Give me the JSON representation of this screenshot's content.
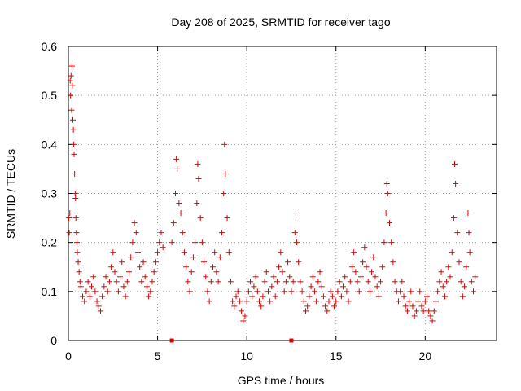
{
  "chart_data": {
    "type": "scatter",
    "title": "Day 208 of 2025, SRMTID for receiver tago",
    "xlabel": "GPS time / hours",
    "ylabel": "SRMTID / TECUs",
    "xlim": [
      0,
      24
    ],
    "ylim": [
      0,
      0.6
    ],
    "x_ticks": [
      0,
      5,
      10,
      15,
      20
    ],
    "x_tick_labels": [
      "0",
      "5",
      "10",
      "15",
      "20"
    ],
    "y_ticks": [
      0,
      0.1,
      0.2,
      0.3,
      0.4,
      0.5,
      0.6
    ],
    "y_tick_labels": [
      "0",
      "0.1",
      "0.2",
      "0.3",
      "0.4",
      "0.5",
      "0.6"
    ],
    "grid": true,
    "marker": "+",
    "color": "#e00000",
    "series": [
      {
        "name": "SRMTID",
        "points": [
          [
            0.02,
            0.25
          ],
          [
            0.05,
            0.22
          ],
          [
            0.08,
            0.26
          ],
          [
            0.1,
            0.53
          ],
          [
            0.12,
            0.5
          ],
          [
            0.15,
            0.54
          ],
          [
            0.18,
            0.47
          ],
          [
            0.2,
            0.56
          ],
          [
            0.22,
            0.52
          ],
          [
            0.25,
            0.45
          ],
          [
            0.28,
            0.43
          ],
          [
            0.3,
            0.4
          ],
          [
            0.32,
            0.38
          ],
          [
            0.35,
            0.34
          ],
          [
            0.38,
            0.3
          ],
          [
            0.4,
            0.29
          ],
          [
            0.42,
            0.25
          ],
          [
            0.45,
            0.22
          ],
          [
            0.48,
            0.2
          ],
          [
            0.5,
            0.18
          ],
          [
            0.55,
            0.16
          ],
          [
            0.6,
            0.14
          ],
          [
            0.65,
            0.12
          ],
          [
            0.7,
            0.11
          ],
          [
            0.8,
            0.09
          ],
          [
            0.9,
            0.08
          ],
          [
            1.0,
            0.1
          ],
          [
            1.1,
            0.12
          ],
          [
            1.2,
            0.09
          ],
          [
            1.3,
            0.11
          ],
          [
            1.4,
            0.13
          ],
          [
            1.5,
            0.1
          ],
          [
            1.6,
            0.08
          ],
          [
            1.7,
            0.07
          ],
          [
            1.8,
            0.06
          ],
          [
            1.9,
            0.09
          ],
          [
            2.0,
            0.11
          ],
          [
            2.1,
            0.13
          ],
          [
            2.2,
            0.1
          ],
          [
            2.3,
            0.12
          ],
          [
            2.4,
            0.15
          ],
          [
            2.5,
            0.18
          ],
          [
            2.6,
            0.14
          ],
          [
            2.7,
            0.12
          ],
          [
            2.8,
            0.1
          ],
          [
            2.9,
            0.13
          ],
          [
            3.0,
            0.16
          ],
          [
            3.1,
            0.11
          ],
          [
            3.2,
            0.09
          ],
          [
            3.3,
            0.12
          ],
          [
            3.4,
            0.14
          ],
          [
            3.5,
            0.17
          ],
          [
            3.6,
            0.2
          ],
          [
            3.7,
            0.24
          ],
          [
            3.8,
            0.22
          ],
          [
            3.9,
            0.18
          ],
          [
            4.0,
            0.15
          ],
          [
            4.1,
            0.12
          ],
          [
            4.2,
            0.16
          ],
          [
            4.3,
            0.13
          ],
          [
            4.4,
            0.11
          ],
          [
            4.5,
            0.09
          ],
          [
            4.6,
            0.1
          ],
          [
            4.7,
            0.12
          ],
          [
            4.8,
            0.14
          ],
          [
            4.9,
            0.16
          ],
          [
            5.0,
            0.18
          ],
          [
            5.1,
            0.2
          ],
          [
            5.2,
            0.22
          ],
          [
            5.3,
            0.19
          ],
          [
            5.8,
            0.2
          ],
          [
            5.9,
            0.24
          ],
          [
            6.0,
            0.3
          ],
          [
            6.05,
            0.37
          ],
          [
            6.1,
            0.35
          ],
          [
            6.2,
            0.28
          ],
          [
            6.3,
            0.26
          ],
          [
            6.4,
            0.22
          ],
          [
            6.5,
            0.18
          ],
          [
            6.6,
            0.15
          ],
          [
            6.7,
            0.12
          ],
          [
            6.8,
            0.1
          ],
          [
            6.9,
            0.14
          ],
          [
            7.0,
            0.17
          ],
          [
            7.1,
            0.2
          ],
          [
            7.2,
            0.28
          ],
          [
            7.25,
            0.36
          ],
          [
            7.3,
            0.33
          ],
          [
            7.4,
            0.25
          ],
          [
            7.5,
            0.2
          ],
          [
            7.6,
            0.16
          ],
          [
            7.7,
            0.13
          ],
          [
            7.8,
            0.1
          ],
          [
            7.9,
            0.08
          ],
          [
            8.0,
            0.12
          ],
          [
            8.1,
            0.15
          ],
          [
            8.2,
            0.18
          ],
          [
            8.3,
            0.14
          ],
          [
            8.4,
            0.12
          ],
          [
            8.5,
            0.17
          ],
          [
            8.6,
            0.22
          ],
          [
            8.7,
            0.3
          ],
          [
            8.75,
            0.4
          ],
          [
            8.8,
            0.34
          ],
          [
            8.9,
            0.25
          ],
          [
            9.0,
            0.18
          ],
          [
            9.1,
            0.12
          ],
          [
            9.2,
            0.08
          ],
          [
            9.3,
            0.07
          ],
          [
            9.4,
            0.09
          ],
          [
            9.5,
            0.1
          ],
          [
            9.6,
            0.08
          ],
          [
            9.7,
            0.06
          ],
          [
            9.8,
            0.04
          ],
          [
            9.9,
            0.05
          ],
          [
            10.0,
            0.08
          ],
          [
            10.1,
            0.1
          ],
          [
            10.2,
            0.12
          ],
          [
            10.3,
            0.09
          ],
          [
            10.4,
            0.11
          ],
          [
            10.5,
            0.13
          ],
          [
            10.6,
            0.1
          ],
          [
            10.7,
            0.08
          ],
          [
            10.8,
            0.07
          ],
          [
            10.9,
            0.09
          ],
          [
            11.0,
            0.12
          ],
          [
            11.1,
            0.14
          ],
          [
            11.2,
            0.1
          ],
          [
            11.3,
            0.08
          ],
          [
            11.4,
            0.11
          ],
          [
            11.5,
            0.13
          ],
          [
            11.6,
            0.09
          ],
          [
            11.7,
            0.12
          ],
          [
            11.8,
            0.15
          ],
          [
            11.9,
            0.18
          ],
          [
            12.0,
            0.14
          ],
          [
            12.1,
            0.1
          ],
          [
            12.2,
            0.12
          ],
          [
            12.3,
            0.16
          ],
          [
            12.4,
            0.13
          ],
          [
            12.5,
            0.1
          ],
          [
            12.6,
            0.12
          ],
          [
            12.7,
            0.22
          ],
          [
            12.75,
            0.26
          ],
          [
            12.8,
            0.2
          ],
          [
            12.9,
            0.16
          ],
          [
            13.0,
            0.12
          ],
          [
            13.1,
            0.1
          ],
          [
            13.2,
            0.08
          ],
          [
            13.3,
            0.06
          ],
          [
            13.4,
            0.07
          ],
          [
            13.5,
            0.09
          ],
          [
            13.6,
            0.11
          ],
          [
            13.7,
            0.13
          ],
          [
            13.8,
            0.1
          ],
          [
            13.9,
            0.08
          ],
          [
            14.0,
            0.12
          ],
          [
            14.1,
            0.14
          ],
          [
            14.2,
            0.11
          ],
          [
            14.3,
            0.09
          ],
          [
            14.4,
            0.07
          ],
          [
            14.5,
            0.06
          ],
          [
            14.6,
            0.08
          ],
          [
            14.7,
            0.1
          ],
          [
            14.8,
            0.09
          ],
          [
            14.9,
            0.07
          ],
          [
            15.0,
            0.08
          ],
          [
            15.1,
            0.1
          ],
          [
            15.2,
            0.12
          ],
          [
            15.3,
            0.09
          ],
          [
            15.4,
            0.11
          ],
          [
            15.5,
            0.13
          ],
          [
            15.6,
            0.1
          ],
          [
            15.7,
            0.08
          ],
          [
            15.8,
            0.12
          ],
          [
            15.9,
            0.15
          ],
          [
            16.0,
            0.18
          ],
          [
            16.1,
            0.14
          ],
          [
            16.2,
            0.12
          ],
          [
            16.3,
            0.1
          ],
          [
            16.4,
            0.13
          ],
          [
            16.5,
            0.16
          ],
          [
            16.6,
            0.19
          ],
          [
            16.7,
            0.15
          ],
          [
            16.8,
            0.12
          ],
          [
            16.9,
            0.1
          ],
          [
            17.0,
            0.14
          ],
          [
            17.1,
            0.17
          ],
          [
            17.2,
            0.13
          ],
          [
            17.3,
            0.11
          ],
          [
            17.4,
            0.09
          ],
          [
            17.5,
            0.12
          ],
          [
            17.6,
            0.15
          ],
          [
            17.7,
            0.2
          ],
          [
            17.8,
            0.26
          ],
          [
            17.85,
            0.32
          ],
          [
            17.9,
            0.3
          ],
          [
            18.0,
            0.24
          ],
          [
            18.1,
            0.2
          ],
          [
            18.2,
            0.16
          ],
          [
            18.3,
            0.12
          ],
          [
            18.4,
            0.1
          ],
          [
            18.5,
            0.08
          ],
          [
            18.6,
            0.1
          ],
          [
            18.7,
            0.12
          ],
          [
            18.8,
            0.09
          ],
          [
            18.9,
            0.07
          ],
          [
            19.0,
            0.06
          ],
          [
            19.1,
            0.08
          ],
          [
            19.2,
            0.1
          ],
          [
            19.3,
            0.07
          ],
          [
            19.4,
            0.05
          ],
          [
            19.5,
            0.06
          ],
          [
            19.6,
            0.08
          ],
          [
            19.7,
            0.1
          ],
          [
            19.8,
            0.07
          ],
          [
            19.9,
            0.06
          ],
          [
            20.0,
            0.08
          ],
          [
            20.1,
            0.09
          ],
          [
            20.2,
            0.06
          ],
          [
            20.3,
            0.05
          ],
          [
            20.4,
            0.04
          ],
          [
            20.5,
            0.06
          ],
          [
            20.6,
            0.08
          ],
          [
            20.7,
            0.1
          ],
          [
            20.8,
            0.12
          ],
          [
            20.9,
            0.14
          ],
          [
            21.0,
            0.11
          ],
          [
            21.1,
            0.09
          ],
          [
            21.2,
            0.12
          ],
          [
            21.3,
            0.15
          ],
          [
            21.4,
            0.13
          ],
          [
            21.5,
            0.18
          ],
          [
            21.6,
            0.25
          ],
          [
            21.65,
            0.36
          ],
          [
            21.7,
            0.32
          ],
          [
            21.8,
            0.22
          ],
          [
            21.9,
            0.16
          ],
          [
            22.0,
            0.12
          ],
          [
            22.1,
            0.09
          ],
          [
            22.2,
            0.11
          ],
          [
            22.3,
            0.15
          ],
          [
            22.4,
            0.26
          ],
          [
            22.45,
            0.22
          ],
          [
            22.5,
            0.18
          ],
          [
            22.6,
            0.12
          ],
          [
            22.7,
            0.1
          ],
          [
            22.8,
            0.13
          ]
        ]
      }
    ],
    "bottom_markers_x": [
      5.8,
      12.5
    ]
  }
}
